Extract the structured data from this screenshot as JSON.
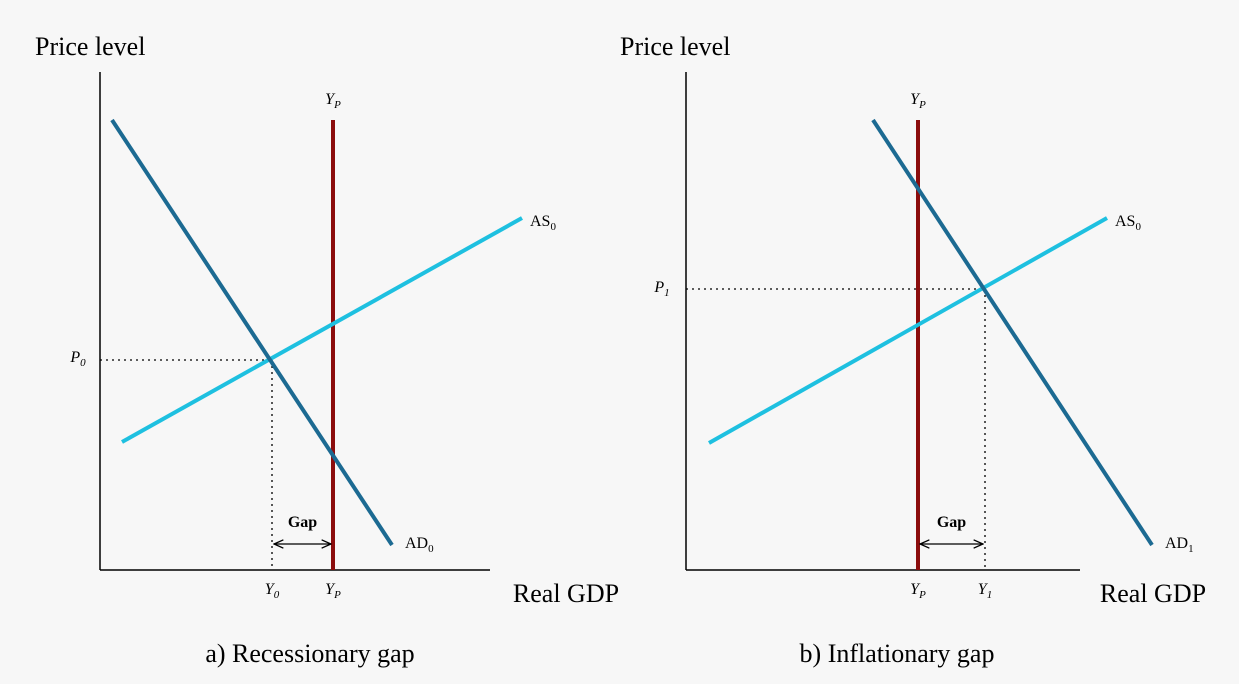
{
  "panels": [
    {
      "y_axis_label": "Price level",
      "x_axis_label": "Real GDP",
      "caption": "a) Recessionary gap",
      "potential_top": {
        "base": "Y",
        "sub": "P"
      },
      "potential_bottom": {
        "base": "Y",
        "sub": "P"
      },
      "supply_label": {
        "base": "AS",
        "sub": "0"
      },
      "demand_label": {
        "base": "AD",
        "sub": "0"
      },
      "price_label": {
        "base": "P",
        "sub": "0"
      },
      "output_label": {
        "base": "Y",
        "sub": "0"
      },
      "gap_label": "Gap"
    },
    {
      "y_axis_label": "Price level",
      "x_axis_label": "Real GDP",
      "caption": "b) Inflationary gap",
      "potential_top": {
        "base": "Y",
        "sub": "P"
      },
      "potential_bottom": {
        "base": "Y",
        "sub": "P"
      },
      "supply_label": {
        "base": "AS",
        "sub": "0"
      },
      "demand_label": {
        "base": "AD",
        "sub": "1"
      },
      "price_label": {
        "base": "P",
        "sub": "1"
      },
      "output_label": {
        "base": "Y",
        "sub": "1"
      },
      "gap_label": "Gap"
    }
  ]
}
